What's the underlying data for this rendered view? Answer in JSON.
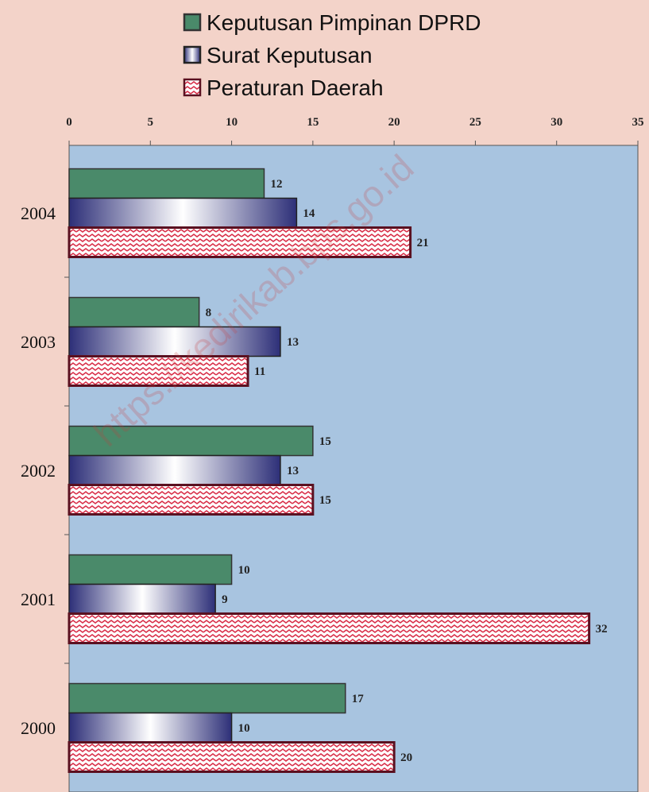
{
  "chart_data": {
    "type": "barh",
    "categories": [
      "2004",
      "2003",
      "2002",
      "2001",
      "2000"
    ],
    "series": [
      {
        "name": "Keputusan Pimpinan DPRD",
        "color": "#4a8a6a",
        "values": [
          12,
          8,
          15,
          10,
          17
        ]
      },
      {
        "name": "Surat Keputusan",
        "color": "#2d2f78",
        "values": [
          14,
          13,
          13,
          9,
          10
        ]
      },
      {
        "name": "Peraturan Daerah",
        "color": "#d9304a",
        "values": [
          21,
          11,
          15,
          32,
          20
        ]
      }
    ],
    "xlim": [
      0,
      35
    ],
    "xticks": [
      0,
      5,
      10,
      15,
      20,
      25,
      30,
      35
    ],
    "legend": "top",
    "watermark": "https://kedirikab.bps.go.id"
  }
}
